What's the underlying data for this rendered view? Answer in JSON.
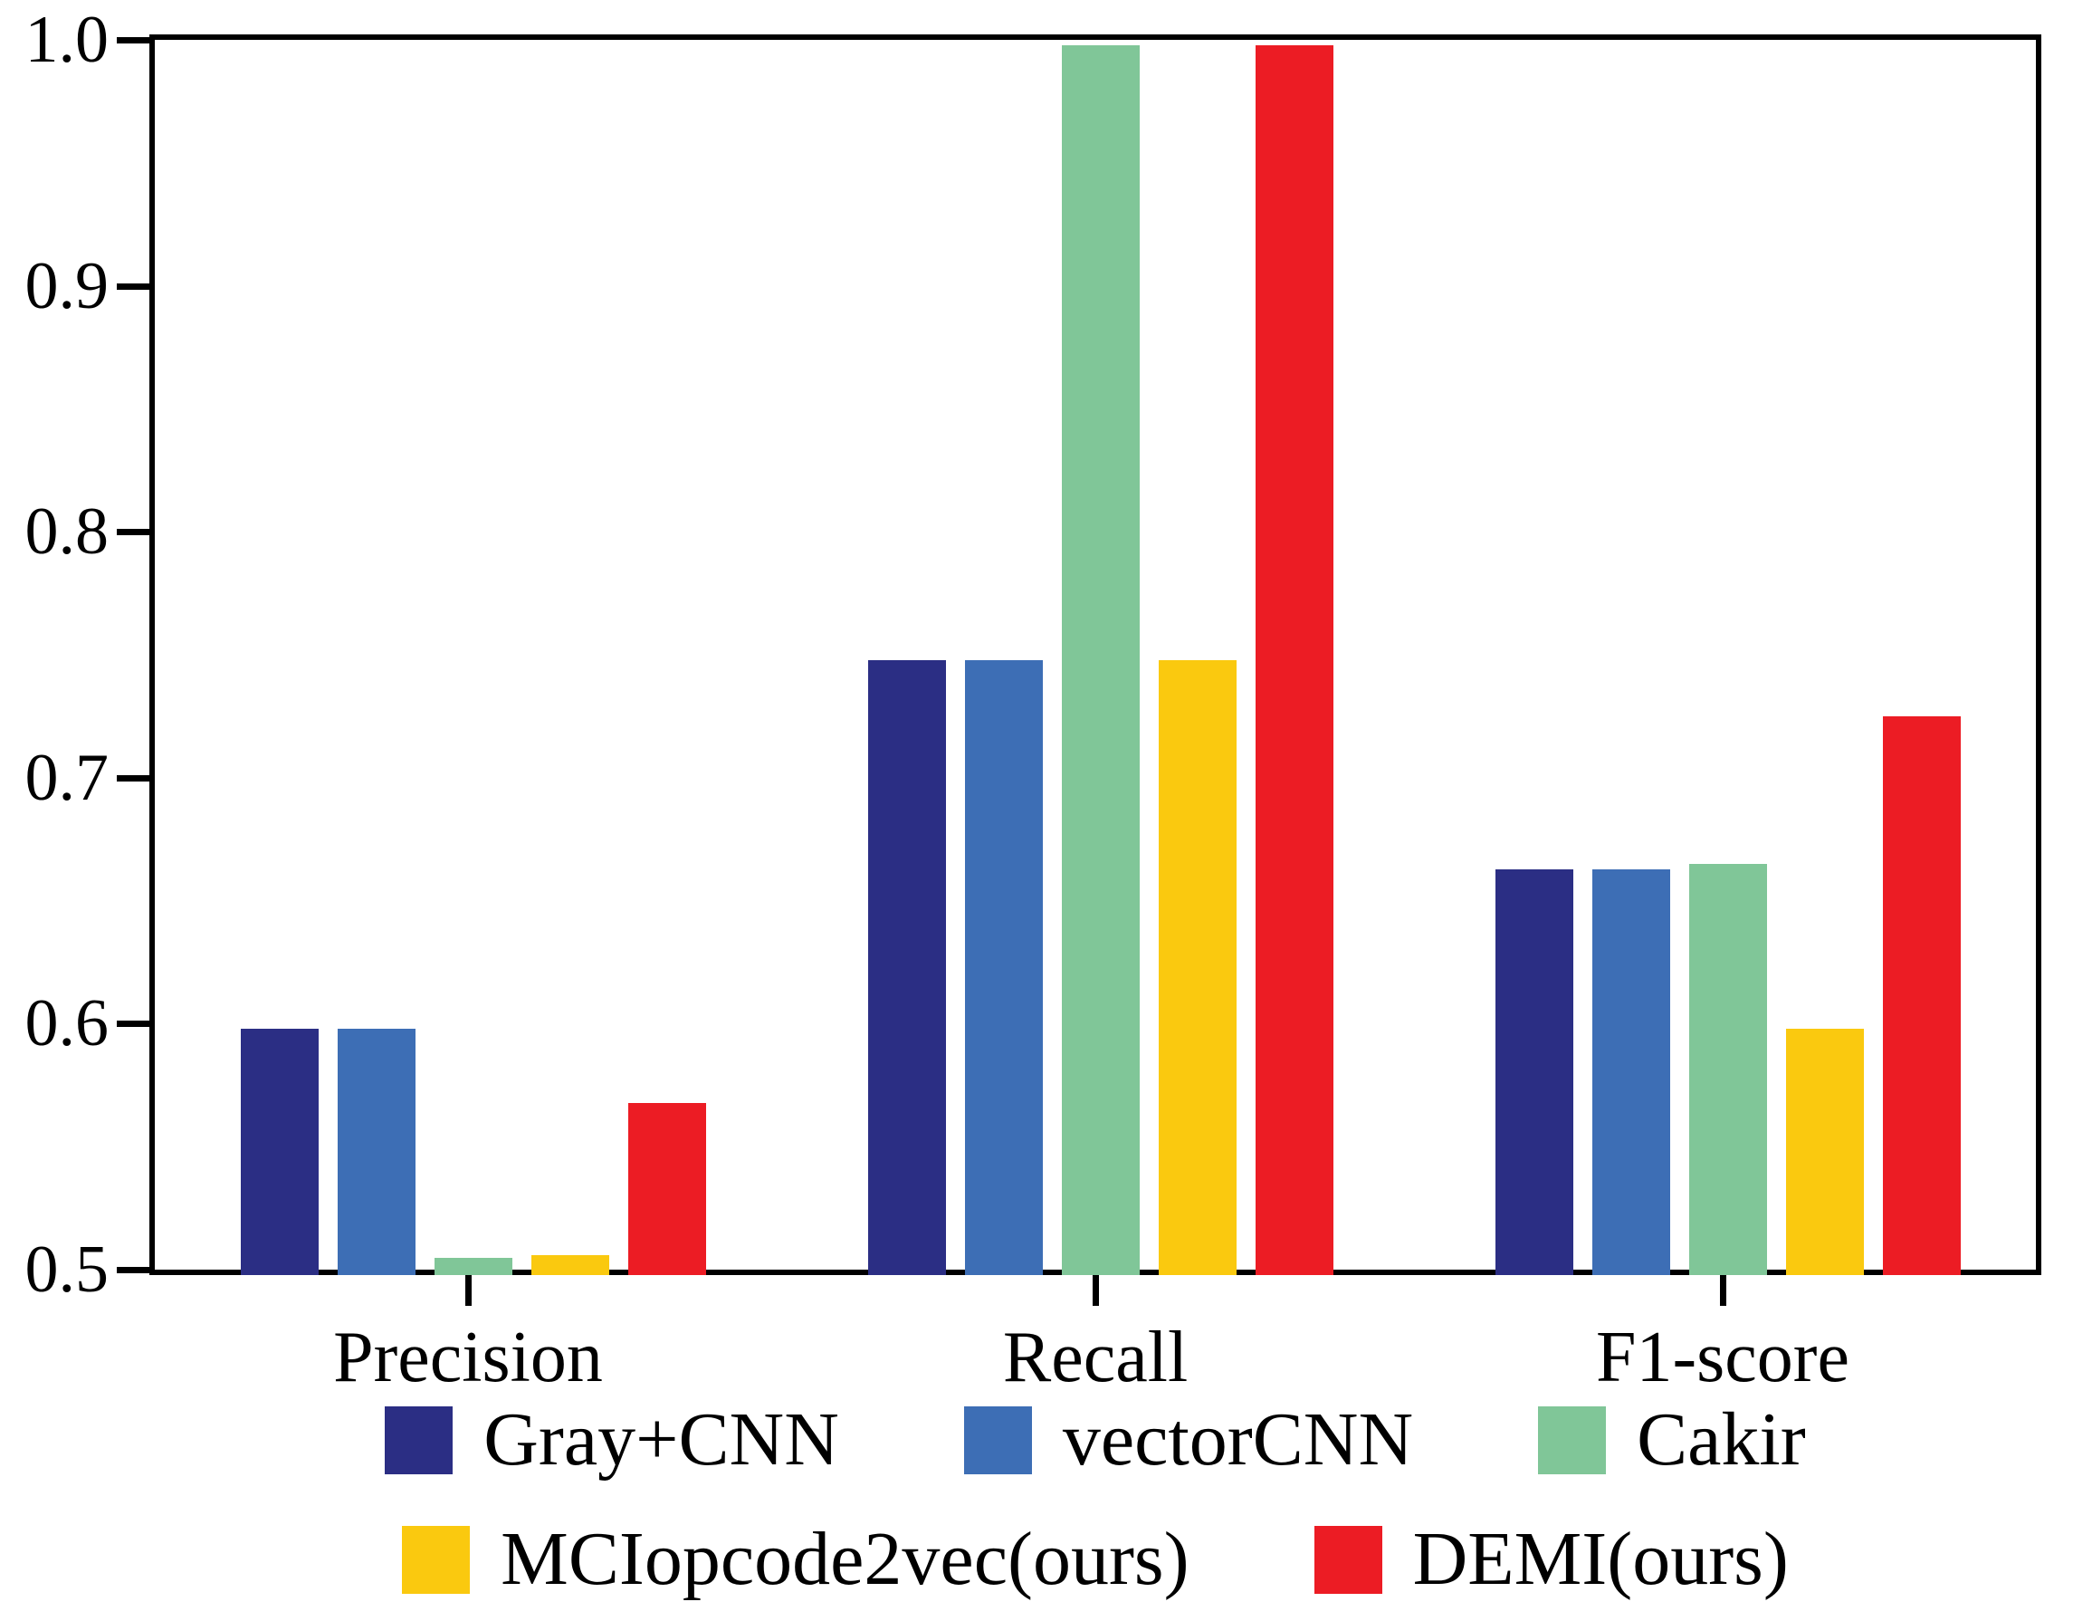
{
  "chart_data": {
    "type": "bar",
    "title": "",
    "xlabel": "",
    "ylabel": "",
    "categories": [
      "Precision",
      "Recall",
      "F1-score"
    ],
    "series": [
      {
        "name": "Gray+CNN",
        "color": "#2B2E84",
        "values": [
          0.6,
          0.75,
          0.665
        ]
      },
      {
        "name": "vectorCNN",
        "color": "#3D6EB5",
        "values": [
          0.6,
          0.75,
          0.665
        ]
      },
      {
        "name": "Cakir",
        "color": "#80C698",
        "values": [
          0.507,
          1.0,
          0.667
        ]
      },
      {
        "name": "MCIopcode2vec(ours)",
        "color": "#FAC90F",
        "values": [
          0.508,
          0.75,
          0.6
        ]
      },
      {
        "name": "DEMI(ours)",
        "color": "#EC1C24",
        "values": [
          0.57,
          1.0,
          0.727
        ]
      }
    ],
    "ylim": [
      0.5,
      1.0
    ],
    "ytick_labels": [
      "0.5",
      "0.6",
      "0.7",
      "0.8",
      "0.9",
      "1.0"
    ],
    "ytick_values": [
      0.5,
      0.6,
      0.7,
      0.8,
      0.9,
      1.0
    ],
    "grid": false,
    "axis_color": "#000000",
    "legend_position": "below-chart",
    "legend_rows": [
      [
        "Gray+CNN",
        "vectorCNN",
        "Cakir"
      ],
      [
        "MCIopcode2vec(ours)",
        "DEMI(ours)"
      ]
    ]
  }
}
